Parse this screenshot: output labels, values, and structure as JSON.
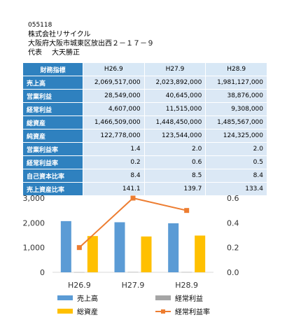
{
  "company": {
    "code": "055118",
    "name": "株式会社リサイクル",
    "address": "大阪府大阪市城東区放出西２－１７－９",
    "rep_title": "代表",
    "rep_name": "大天勝正"
  },
  "table": {
    "header_label": "財務指標",
    "periods": [
      "H26.9",
      "H27.9",
      "H28.9"
    ],
    "rows": [
      {
        "label": "売上高",
        "values": [
          "2,069,517,000",
          "2,023,892,000",
          "1,981,127,000"
        ]
      },
      {
        "label": "営業利益",
        "values": [
          "28,549,000",
          "40,645,000",
          "38,876,000"
        ]
      },
      {
        "label": "経常利益",
        "values": [
          "4,607,000",
          "11,515,000",
          "9,308,000"
        ]
      },
      {
        "label": "総資産",
        "values": [
          "1,466,509,000",
          "1,448,450,000",
          "1,485,567,000"
        ]
      },
      {
        "label": "純資産",
        "values": [
          "122,778,000",
          "123,544,000",
          "124,325,000"
        ]
      },
      {
        "label": "営業利益率",
        "values": [
          "1.4",
          "2.0",
          "2.0"
        ]
      },
      {
        "label": "経常利益率",
        "values": [
          "0.2",
          "0.6",
          "0.5"
        ]
      },
      {
        "label": "自己資本比率",
        "values": [
          "8.4",
          "8.5",
          "8.4"
        ]
      },
      {
        "label": "売上資産比率",
        "values": [
          "141.1",
          "139.7",
          "133.4"
        ]
      }
    ]
  },
  "chart_data": {
    "type": "bar",
    "categories": [
      "H26.9",
      "H27.9",
      "H28.9"
    ],
    "y_left": {
      "min": 0,
      "max": 3000,
      "ticks": [
        0,
        1000,
        2000,
        3000
      ],
      "tick_labels": [
        "0",
        "1,000",
        "2,000",
        "3,000"
      ]
    },
    "y_right": {
      "min": 0,
      "max": 0.6,
      "ticks": [
        0,
        0.2,
        0.4,
        0.6
      ],
      "tick_labels": [
        "0.0",
        "0.2",
        "0.4",
        "0.6"
      ]
    },
    "series": [
      {
        "name": "売上高",
        "type": "bar",
        "axis": "left",
        "color": "#5b9bd5",
        "values": [
          2069.517,
          2023.892,
          1981.127
        ]
      },
      {
        "name": "経常利益",
        "type": "bar",
        "axis": "left",
        "color": "#a5a5a5",
        "values": [
          4.607,
          11.515,
          9.308
        ]
      },
      {
        "name": "総資産",
        "type": "bar",
        "axis": "left",
        "color": "#ffc000",
        "values": [
          1466.509,
          1448.45,
          1485.567
        ]
      },
      {
        "name": "経常利益率",
        "type": "line",
        "axis": "right",
        "color": "#ed7d31",
        "values": [
          0.2,
          0.6,
          0.5
        ]
      }
    ],
    "grid": false,
    "legend_position": "bottom"
  }
}
